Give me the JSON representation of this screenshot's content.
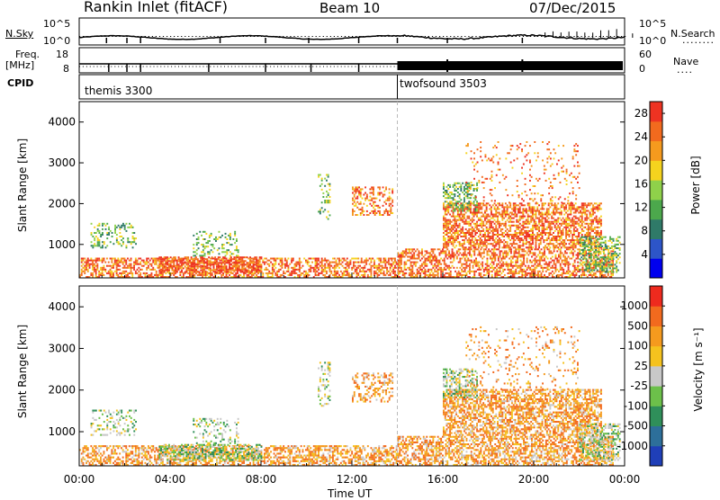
{
  "header": {
    "station": "Rankin Inlet (fitACF)",
    "beam": "Beam 10",
    "date": "07/Dec/2015"
  },
  "noise_panel": {
    "left_label": "N.Sky",
    "right_label": "N.Search",
    "y_top": "10^5",
    "y_bottom": "10^0",
    "y_top_right": "10^5",
    "y_bottom_right": "10^0"
  },
  "freq_panel": {
    "left_label_1": "Freq.",
    "left_label_2": "[MHz]",
    "right_label": "Nave",
    "y_top_left": "18",
    "y_bottom_left": "8",
    "y_top_right": "60",
    "y_bottom_right": "0"
  },
  "cpid_panel": {
    "label": "CPID",
    "modes": [
      {
        "name": "themis 3300",
        "start_hour": 0,
        "end_hour": 14
      },
      {
        "name": "twofsound 3503",
        "start_hour": 14,
        "end_hour": 24
      }
    ]
  },
  "chart_data": [
    {
      "type": "heatmap",
      "name": "power-panel",
      "ylabel": "Slant Range [km]",
      "xlim": [
        0,
        24
      ],
      "ylim": [
        180,
        4500
      ],
      "yticks": [
        1000,
        2000,
        3000,
        4000
      ],
      "colorbar": {
        "label": "Power [dB]",
        "ticks": [
          4,
          8,
          12,
          16,
          20,
          24,
          28
        ],
        "range": [
          0,
          30
        ],
        "colors": [
          "#0000ee",
          "#2d55c8",
          "#2f7a68",
          "#4ca84c",
          "#8fd14a",
          "#f5d31e",
          "#f59a1e",
          "#f26a1e",
          "#ee3322"
        ]
      }
    },
    {
      "type": "heatmap",
      "name": "velocity-panel",
      "ylabel": "Slant Range [km]",
      "xlabel": "Time UT",
      "xlim": [
        0,
        24
      ],
      "ylim": [
        180,
        4500
      ],
      "yticks": [
        1000,
        2000,
        3000,
        4000
      ],
      "xticks": [
        "00:00",
        "04:00",
        "08:00",
        "12:00",
        "16:00",
        "20:00",
        "00:00"
      ],
      "colorbar": {
        "label": "Velocity [m s⁻¹]",
        "ticks": [
          "1000",
          "500",
          "100",
          "25",
          "-25",
          "-100",
          "-500",
          "-1000"
        ],
        "colors": [
          "#1f3fb8",
          "#2d6f9a",
          "#2f8f5a",
          "#6cc04a",
          "#c8c8c8",
          "#f5c21e",
          "#f59a1e",
          "#f26a1e",
          "#ee2a1e"
        ]
      }
    }
  ],
  "colors": {
    "frame": "#000000",
    "grid": "#b0b0b0"
  }
}
